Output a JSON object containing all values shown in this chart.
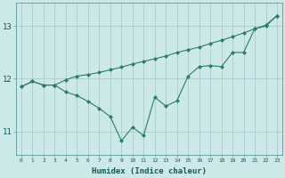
{
  "x": [
    0,
    1,
    2,
    3,
    4,
    5,
    6,
    7,
    8,
    9,
    10,
    11,
    12,
    13,
    14,
    15,
    16,
    17,
    18,
    19,
    20,
    21,
    22,
    23
  ],
  "line1": [
    11.85,
    11.95,
    11.88,
    11.88,
    11.98,
    12.05,
    12.08,
    12.12,
    12.17,
    12.22,
    12.28,
    12.33,
    12.38,
    12.43,
    12.5,
    12.55,
    12.6,
    12.67,
    12.73,
    12.8,
    12.87,
    12.95,
    13.02,
    13.2
  ],
  "line2": [
    11.85,
    11.95,
    11.88,
    11.88,
    11.75,
    11.68,
    11.57,
    11.44,
    11.28,
    10.82,
    11.08,
    10.92,
    11.65,
    11.48,
    11.58,
    12.05,
    12.23,
    12.25,
    12.23,
    12.5,
    12.5,
    12.95,
    13.0,
    13.2
  ],
  "line_color": "#2a7d6b",
  "bg_color": "#cce8e8",
  "grid_color": "#aacccc",
  "xlabel": "Humidex (Indice chaleur)",
  "yticks": [
    11,
    12,
    13
  ],
  "ylim": [
    10.55,
    13.45
  ],
  "xlim": [
    -0.5,
    23.5
  ]
}
